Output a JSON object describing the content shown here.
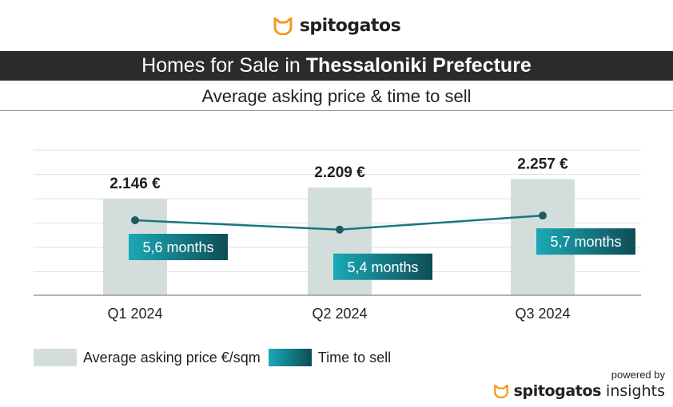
{
  "brand": {
    "name": "spitogatos",
    "logo_icon": "cat-icon",
    "color": "#f29a1f"
  },
  "header": {
    "title_prefix": "Homes for Sale in ",
    "title_bold": "Thessaloniki Prefecture",
    "subtitle": "Average asking price & time to sell"
  },
  "legend": {
    "price_label": "Average asking price €/sqm",
    "time_label": "Time to sell"
  },
  "footer": {
    "powered_by": "powered by",
    "brand": "spitogatos",
    "suffix": "insights"
  },
  "colors": {
    "bar": "#d3dddc",
    "line": "#177782",
    "label_start": "#1aa9b6",
    "label_end": "#0f4d56",
    "title_bar": "#2b2b2b",
    "grid": "#e2e2e2"
  },
  "chart_data": {
    "type": "bar",
    "categories": [
      "Q1 2024",
      "Q2 2024",
      "Q3 2024"
    ],
    "series": [
      {
        "name": "Average asking price €/sqm",
        "type": "bar",
        "values": [
          2146,
          2209,
          2257
        ],
        "labels": [
          "2.146 €",
          "2.209 €",
          "2.257 €"
        ]
      },
      {
        "name": "Time to sell",
        "type": "line",
        "values": [
          5.6,
          5.4,
          5.7
        ],
        "labels": [
          "5,6 months",
          "5,4 months",
          "5,7 months"
        ]
      }
    ],
    "grid": true,
    "legend_position": "bottom-left"
  }
}
